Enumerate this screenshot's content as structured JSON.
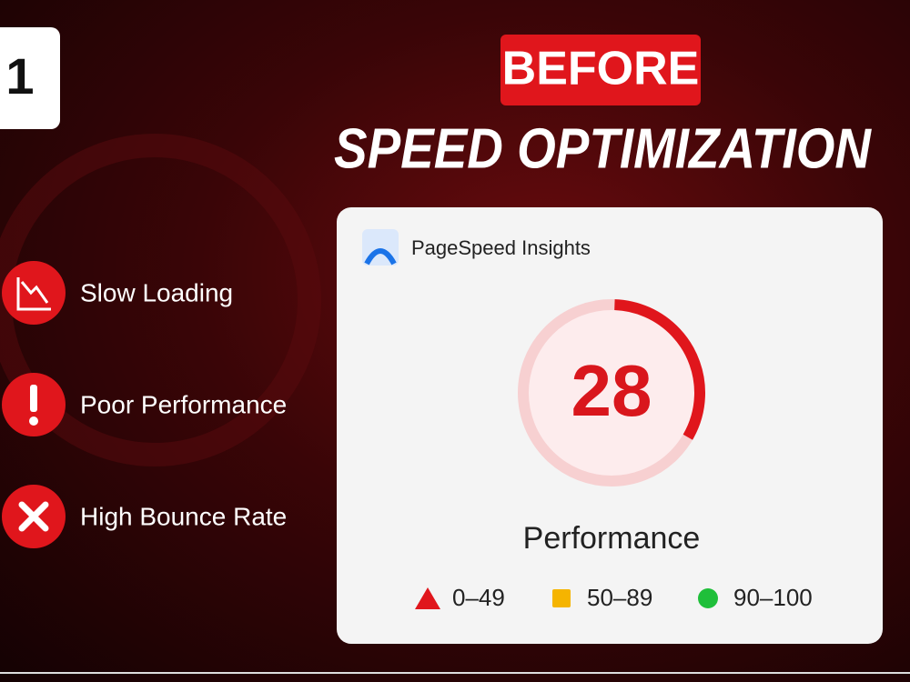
{
  "badge": "1",
  "header": {
    "tag": "BEFORE",
    "title": "SPEED OPTIMIZATION"
  },
  "issues": [
    "Slow Loading",
    "Poor Performance",
    "High Bounce Rate"
  ],
  "card": {
    "app": "PageSpeed Insights",
    "score": 28,
    "label": "Performance",
    "legend": [
      "0–49",
      "50–89",
      "90–100"
    ]
  }
}
